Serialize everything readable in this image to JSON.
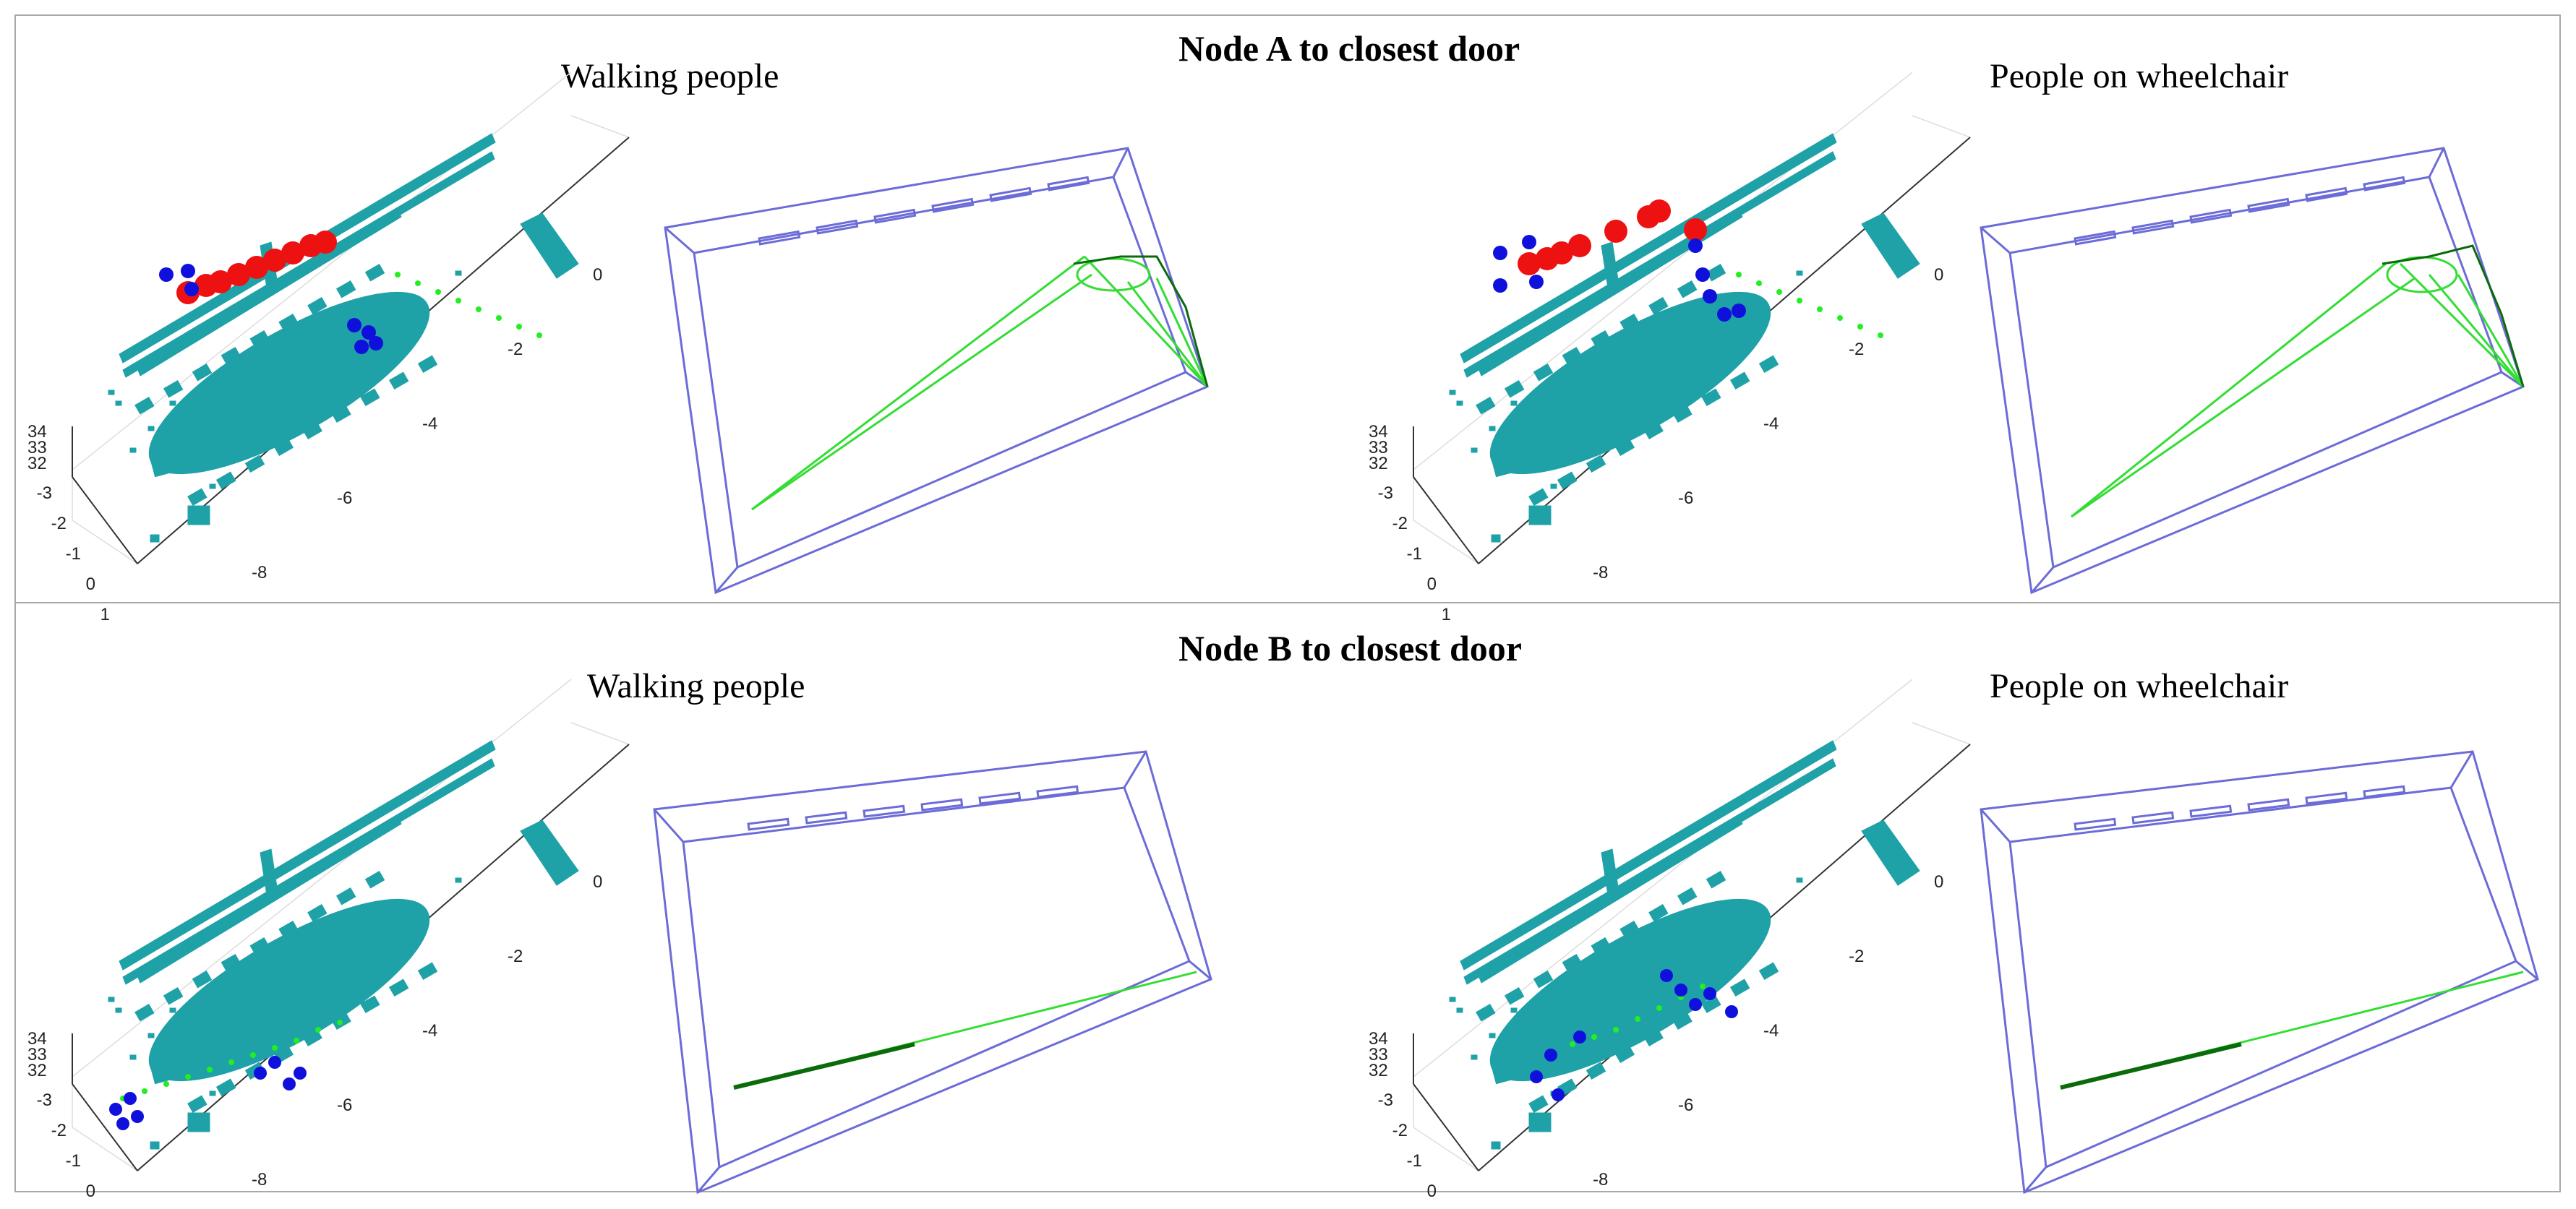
{
  "rows": [
    {
      "title": "Node A to closest door",
      "left_label": "Walking people",
      "right_label": "People on wheelchair"
    },
    {
      "title": "Node B to closest door",
      "left_label": "Walking people",
      "right_label": "People on wheelchair"
    }
  ],
  "axis_ticks": {
    "z": [
      "34",
      "33",
      "32"
    ],
    "y": [
      "-3",
      "-2",
      "-1",
      "0",
      "1"
    ],
    "x": [
      "-8",
      "-6",
      "-4",
      "-2",
      "0"
    ]
  },
  "colors": {
    "point_cloud": "#1fa1a8",
    "obstacle": "#ee1111",
    "door_marker": "#1010dd",
    "path_points": "#22ee22",
    "graph_edge": "#33dd33",
    "graph_edge_dark": "#0b6b0b",
    "room_box": "#6c6cd8",
    "frame": "#a8a8a8"
  }
}
